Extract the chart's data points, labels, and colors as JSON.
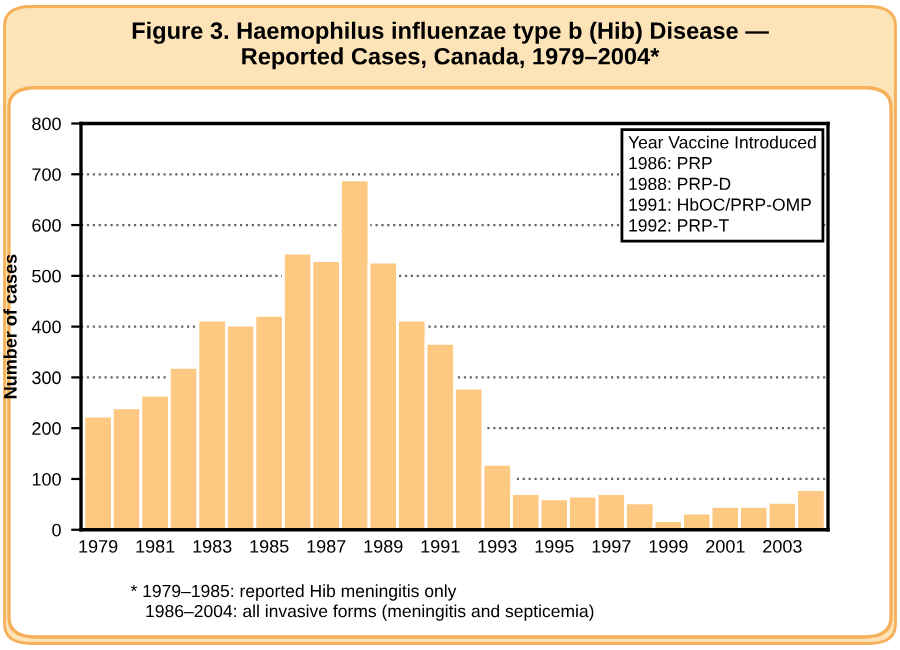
{
  "chart_data": {
    "type": "bar",
    "title": "Figure 3. Haemophilus influenzae type b (Hib) Disease —\nReported Cases, Canada, 1979–2004*",
    "ylabel": "Number of cases",
    "categories": [
      "1979",
      null,
      "1981",
      null,
      "1983",
      null,
      "1985",
      null,
      "1987",
      null,
      "1989",
      null,
      "1991",
      null,
      "1993",
      null,
      "1995",
      null,
      "1997",
      null,
      "1999",
      null,
      "2001",
      null,
      "2003",
      null
    ],
    "values": [
      224,
      240,
      265,
      320,
      413,
      403,
      422,
      545,
      530,
      689,
      527,
      413,
      367,
      279,
      129,
      71,
      61,
      66,
      71,
      53,
      18,
      33,
      46,
      46,
      54,
      79
    ],
    "color": "#fdc882",
    "ylim": [
      0,
      800
    ],
    "yticks": [
      0,
      100,
      200,
      300,
      400,
      500,
      600,
      700,
      800
    ],
    "grid": "y",
    "annotations": [
      "Year Vaccine Introduced\n1986: PRP\n1988: PRP-D\n1991: HbOC/PRP-OMP\n1992: PRP-T",
      "* 1979–1985: reported Hib meningitis only\n   1986–2004: all invasive forms (meningitis and septicemia)"
    ]
  }
}
